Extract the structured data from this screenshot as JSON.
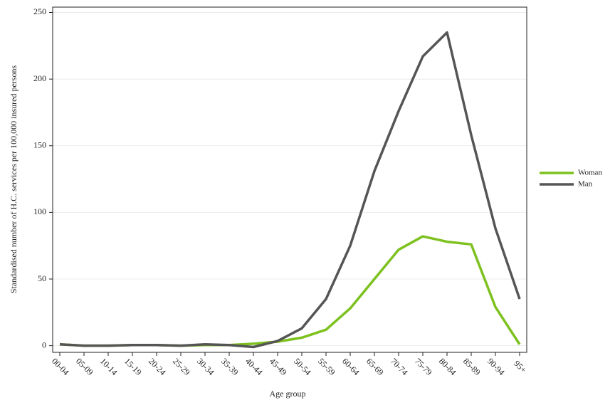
{
  "chart_data": {
    "type": "line",
    "xlabel": "Age group",
    "ylabel": "Standardised number of H.C. services per 100,000 insured persons",
    "categories": [
      "00-04",
      "05-09",
      "10-14",
      "15-19",
      "20-24",
      "25-29",
      "30-34",
      "35-39",
      "40-44",
      "45-49",
      "50-54",
      "55-59",
      "60-64",
      "65-69",
      "70-74",
      "75-79",
      "80-84",
      "85-89",
      "90-94",
      "95+"
    ],
    "series": [
      {
        "name": "Woman",
        "color": "#7dc11f",
        "values": [
          1,
          0,
          0,
          0.5,
          0.5,
          0,
          0.5,
          0.5,
          1.5,
          3,
          6,
          12,
          28,
          50,
          72,
          82,
          78,
          76,
          29,
          1
        ]
      },
      {
        "name": "Man",
        "color": "#555555",
        "values": [
          1,
          0,
          0,
          0.5,
          0.5,
          0,
          1,
          0.5,
          -1,
          3.5,
          13,
          35,
          75,
          131,
          176,
          217,
          235,
          158,
          88,
          35
        ]
      }
    ],
    "ylim": [
      -5,
      254
    ],
    "yticks": [
      0,
      50,
      100,
      150,
      200,
      250
    ],
    "grid": true,
    "legend": "right"
  }
}
